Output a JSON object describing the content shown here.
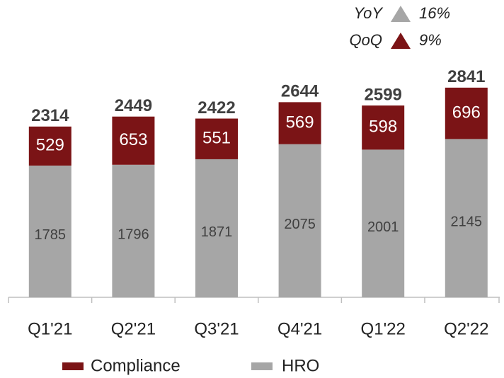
{
  "chart_data": {
    "type": "stacked_bar",
    "categories": [
      "Q1'21",
      "Q2'21",
      "Q3'21",
      "Q4'21",
      "Q1'22",
      "Q2'22"
    ],
    "series": [
      {
        "name": "HRO",
        "color": "#a6a6a6",
        "values": [
          1785,
          1796,
          1871,
          2075,
          2001,
          2145
        ]
      },
      {
        "name": "Compliance",
        "color": "#7b1416",
        "values": [
          529,
          653,
          551,
          569,
          598,
          696
        ]
      }
    ],
    "totals": [
      2314,
      2449,
      2422,
      2644,
      2599,
      2841
    ],
    "annotations": [
      {
        "label": "YoY",
        "value": 16,
        "value_label": "16%",
        "color": "#a6a6a6"
      },
      {
        "label": "QoQ",
        "value": 9,
        "value_label": "9%",
        "color": "#7b1416"
      }
    ],
    "ylim": [
      0,
      4000
    ]
  }
}
